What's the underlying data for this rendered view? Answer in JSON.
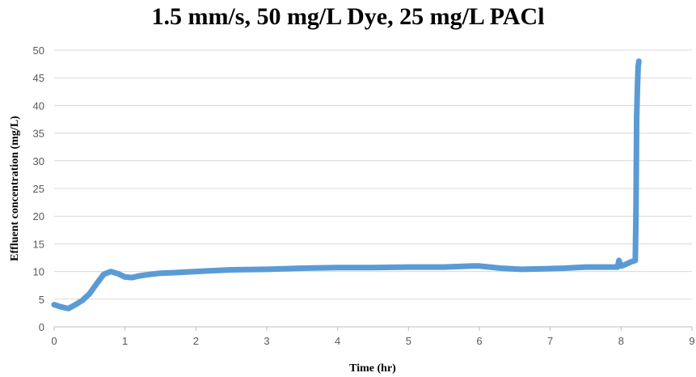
{
  "chart_data": {
    "type": "line",
    "title": "1.5 mm/s, 50 mg/L Dye, 25 mg/L PACl",
    "xlabel": "Time (hr)",
    "ylabel": "Effluent  concentration  (mg/L)",
    "xlim": [
      0,
      9
    ],
    "ylim": [
      0,
      50
    ],
    "xticks": [
      "0",
      "1",
      "2",
      "3",
      "4",
      "5",
      "6",
      "7",
      "8",
      "9"
    ],
    "yticks": [
      "0",
      "5",
      "10",
      "15",
      "20",
      "25",
      "30",
      "35",
      "40",
      "45",
      "50"
    ],
    "grid": "horizontal",
    "legend": "none",
    "color": "#5B9BD5",
    "series": [
      {
        "x": [
          0,
          0.1,
          0.2,
          0.3,
          0.4,
          0.5,
          0.6,
          0.7,
          0.8,
          0.9,
          1.0,
          1.1,
          1.2,
          1.3,
          1.5,
          1.7,
          2.0,
          2.5,
          3.0,
          3.5,
          4.0,
          4.5,
          5.0,
          5.5,
          5.9,
          6.0,
          6.3,
          6.6,
          6.9,
          7.2,
          7.5,
          7.8,
          7.95,
          7.97,
          8.0,
          8.05,
          8.1,
          8.15,
          8.2,
          8.21,
          8.22,
          8.23,
          8.24,
          8.25
        ],
        "y": [
          4,
          3.6,
          3.3,
          4.0,
          4.8,
          6.0,
          7.8,
          9.5,
          10.0,
          9.6,
          9.0,
          8.9,
          9.2,
          9.4,
          9.7,
          9.8,
          10.0,
          10.3,
          10.4,
          10.6,
          10.7,
          10.7,
          10.8,
          10.8,
          11.0,
          11.0,
          10.6,
          10.4,
          10.5,
          10.6,
          10.8,
          10.8,
          10.8,
          12.0,
          11.0,
          11.2,
          11.5,
          11.8,
          12.0,
          20.0,
          38.0,
          43.0,
          47.0,
          48.0
        ]
      }
    ]
  }
}
